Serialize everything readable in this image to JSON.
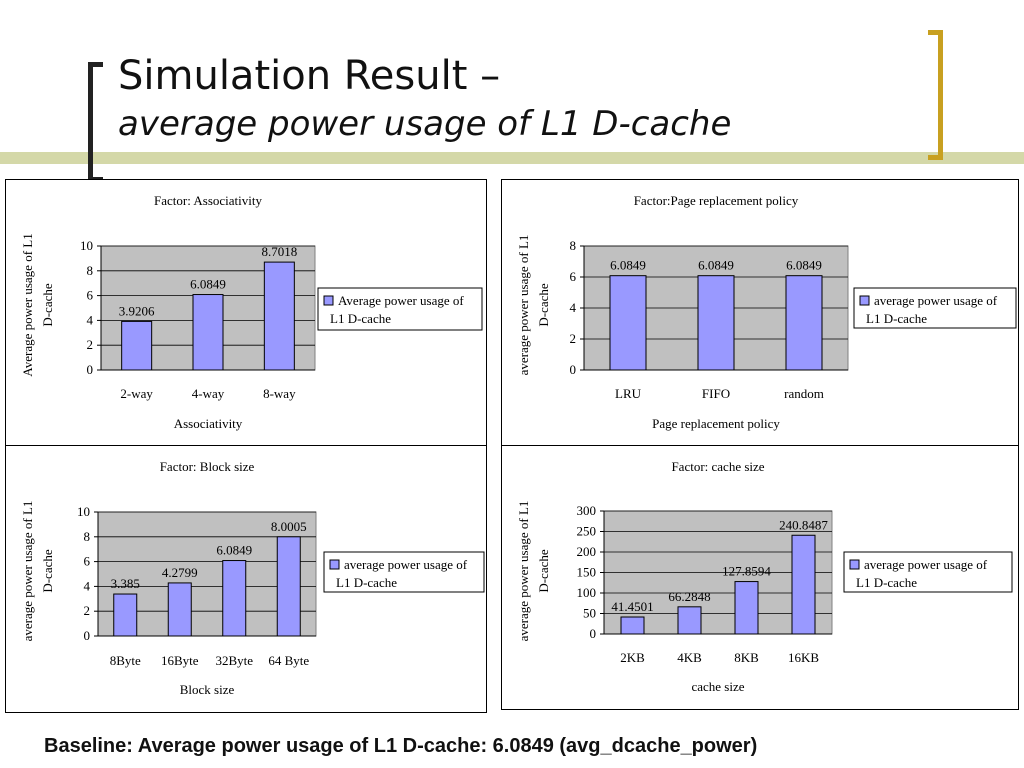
{
  "slide": {
    "title_line1": "Simulation Result –",
    "title_line2": "average power usage of L1 D-cache",
    "baseline": "Baseline: Average power usage of L1 D-cache: 6.0849 (avg_dcache_power)"
  },
  "colors": {
    "bar": "#9999ff",
    "plot_bg": "#c0c0c0",
    "bracket_left": "#222222",
    "bracket_right": "#c8a020",
    "band": "#d4d8a8"
  },
  "chart_data": [
    {
      "type": "bar",
      "title": "Factor: Associativity",
      "xlabel": "Associativity",
      "ylabel_lines": [
        "Average power usage of L1",
        "D-cache"
      ],
      "legend_lines": [
        "Average power usage of",
        "L1 D-cache"
      ],
      "legend_position": "right",
      "categories": [
        "2-way",
        "4-way",
        "8-way"
      ],
      "values": [
        3.9206,
        6.0849,
        8.7018
      ],
      "value_labels": [
        "3.9206",
        "6.0849",
        "8.7018"
      ],
      "yticks": [
        "0",
        "2",
        "4",
        "6",
        "8",
        "10"
      ],
      "ylim": [
        0,
        10
      ],
      "grid": true
    },
    {
      "type": "bar",
      "title": "Factor:Page replacement policy",
      "xlabel": "Page replacement policy",
      "ylabel_lines": [
        "average power usage of L1",
        "D-cache"
      ],
      "legend_lines": [
        "average power usage of",
        "L1 D-cache"
      ],
      "legend_position": "right",
      "categories": [
        "LRU",
        "FIFO",
        "random"
      ],
      "values": [
        6.0849,
        6.0849,
        6.0849
      ],
      "value_labels": [
        "6.0849",
        "6.0849",
        "6.0849"
      ],
      "yticks": [
        "0",
        "2",
        "4",
        "6",
        "8"
      ],
      "ylim": [
        0,
        8
      ],
      "grid": true
    },
    {
      "type": "bar",
      "title": "Factor: Block size",
      "xlabel": "Block size",
      "ylabel_lines": [
        "average power usage of L1",
        "D-cache"
      ],
      "legend_lines": [
        "average power usage of",
        "L1 D-cache"
      ],
      "legend_position": "right",
      "categories": [
        "8Byte",
        "16Byte",
        "32Byte",
        "64 Byte"
      ],
      "values": [
        3.385,
        4.2799,
        6.0849,
        8.0005
      ],
      "value_labels": [
        "3.385",
        "4.2799",
        "6.0849",
        "8.0005"
      ],
      "yticks": [
        "0",
        "2",
        "4",
        "6",
        "8",
        "10"
      ],
      "ylim": [
        0,
        10
      ],
      "grid": true
    },
    {
      "type": "bar",
      "title": "Factor: cache size",
      "xlabel": "cache size",
      "ylabel_lines": [
        "average power usage of L1",
        "D-cache"
      ],
      "legend_lines": [
        "average power usage of",
        "L1 D-cache"
      ],
      "legend_position": "right",
      "categories": [
        "2KB",
        "4KB",
        "8KB",
        "16KB"
      ],
      "values": [
        41.4501,
        66.2848,
        127.8594,
        240.8487
      ],
      "value_labels": [
        "41.4501",
        "66.2848",
        "127.8594",
        "240.8487"
      ],
      "yticks": [
        "0",
        "50",
        "100",
        "150",
        "200",
        "250",
        "300"
      ],
      "ylim": [
        0,
        300
      ],
      "grid": true
    }
  ]
}
